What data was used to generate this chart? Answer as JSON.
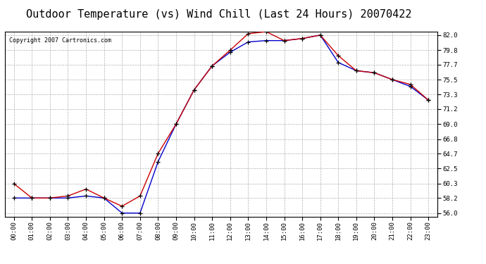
{
  "title": "Outdoor Temperature (vs) Wind Chill (Last 24 Hours) 20070422",
  "copyright": "Copyright 2007 Cartronics.com",
  "hours": [
    "00:00",
    "01:00",
    "02:00",
    "03:00",
    "04:00",
    "05:00",
    "06:00",
    "07:00",
    "08:00",
    "09:00",
    "10:00",
    "11:00",
    "12:00",
    "13:00",
    "14:00",
    "15:00",
    "16:00",
    "17:00",
    "18:00",
    "19:00",
    "20:00",
    "21:00",
    "22:00",
    "23:00"
  ],
  "temp": [
    60.3,
    58.2,
    58.2,
    58.5,
    59.5,
    58.2,
    57.0,
    58.5,
    64.7,
    69.0,
    74.0,
    77.5,
    79.8,
    82.2,
    82.5,
    81.2,
    81.5,
    82.0,
    79.0,
    76.8,
    76.5,
    75.5,
    74.8,
    72.5
  ],
  "windchill": [
    58.2,
    58.2,
    58.2,
    58.2,
    58.5,
    58.2,
    56.0,
    56.0,
    63.5,
    69.0,
    74.0,
    77.5,
    79.5,
    81.0,
    81.2,
    81.2,
    81.5,
    82.0,
    78.0,
    76.8,
    76.5,
    75.5,
    74.5,
    72.5
  ],
  "temp_color": "#cc0000",
  "windchill_color": "#0000cc",
  "background_color": "#ffffff",
  "plot_bg_color": "#ffffff",
  "grid_color": "#b0b0b0",
  "ylim_min": 56.0,
  "ylim_max": 82.0,
  "yticks": [
    56.0,
    58.2,
    60.3,
    62.5,
    64.7,
    66.8,
    69.0,
    71.2,
    73.3,
    75.5,
    77.7,
    79.8,
    82.0
  ],
  "title_fontsize": 11,
  "copyright_fontsize": 6,
  "tick_fontsize": 6.5,
  "marker": "+",
  "marker_color": "#000000",
  "marker_size": 4,
  "linewidth": 1.0
}
